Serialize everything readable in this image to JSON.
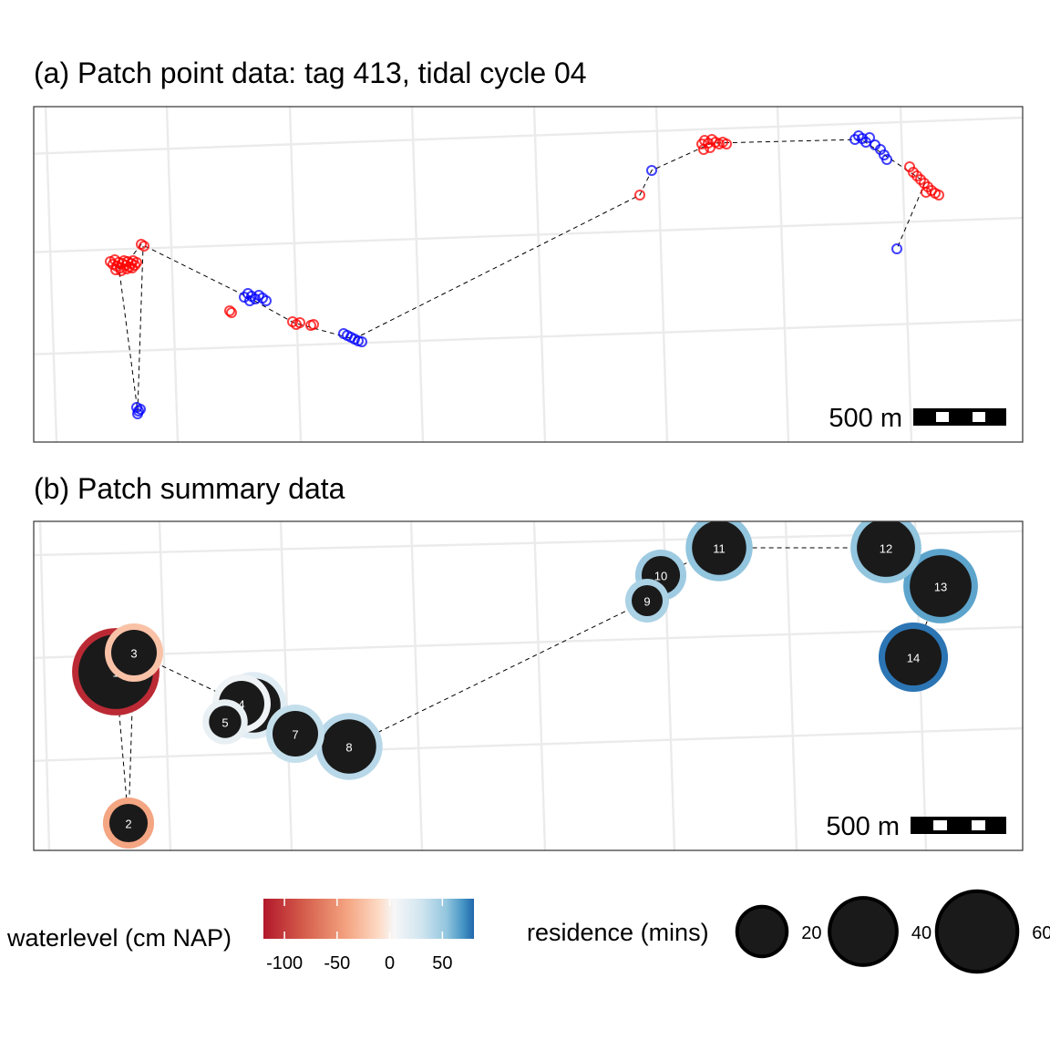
{
  "panels": {
    "a": {
      "title": "(a) Patch point data: tag 413, tidal cycle 04"
    },
    "b": {
      "title": "(b) Patch summary data"
    }
  },
  "scalebar": {
    "label": "500 m"
  },
  "colors": {
    "above_zero": "#0000ff",
    "below_zero": "#ff0000",
    "grid": "#ebebeb",
    "panel_border": "#333333",
    "patch_fill": "#1a1a1a"
  },
  "legend": {
    "waterlevel": {
      "title": "waterlevel (cm NAP)",
      "ticks": [
        -100,
        -50,
        0,
        50
      ],
      "range": [
        -120,
        80
      ],
      "palette": "RdBu diverging"
    },
    "residence": {
      "title": "residence (mins)",
      "ticks": [
        20,
        40,
        60
      ]
    }
  },
  "chart_data": [
    {
      "type": "scatter",
      "title": "(a) Patch point data: tag 413, tidal cycle 04",
      "xlabel": "",
      "ylabel": "",
      "grid": true,
      "color_encoding": "red = waterlevel below 0 cm NAP, blue = above",
      "series": [
        {
          "class": "red",
          "points": [
            [
              121,
              287
            ],
            [
              124,
              290
            ],
            [
              126,
              285
            ],
            [
              128,
              292
            ],
            [
              130,
              288
            ],
            [
              132,
              294
            ],
            [
              134,
              289
            ],
            [
              136,
              286
            ],
            [
              138,
              291
            ],
            [
              140,
              287
            ],
            [
              142,
              293
            ],
            [
              144,
              289
            ],
            [
              146,
              286
            ],
            [
              148,
              291
            ],
            [
              150,
              288
            ],
            [
              127,
              296
            ],
            [
              133,
              297
            ],
            [
              139,
              295
            ],
            [
              145,
              294
            ],
            [
              155,
              268
            ],
            [
              158,
              270
            ],
            [
              252,
              341
            ],
            [
              254,
              343
            ],
            [
              321,
              353
            ],
            [
              325,
              356
            ],
            [
              329,
              354
            ],
            [
              341,
              357
            ],
            [
              344,
              356
            ],
            [
              702,
              214
            ],
            [
              770,
              158
            ],
            [
              773,
              154
            ],
            [
              777,
              157
            ],
            [
              781,
              153
            ],
            [
              785,
              156
            ],
            [
              789,
              158
            ],
            [
              793,
              156
            ],
            [
              797,
              158
            ],
            [
              772,
              164
            ],
            [
              779,
              162
            ],
            [
              998,
              183
            ],
            [
              1002,
              189
            ],
            [
              1006,
              193
            ],
            [
              1010,
              197
            ],
            [
              1014,
              201
            ],
            [
              1018,
              205
            ],
            [
              1022,
              209
            ],
            [
              1026,
              212
            ],
            [
              1030,
              214
            ],
            [
              1016,
              211
            ]
          ]
        },
        {
          "class": "blue",
          "points": [
            [
              150,
              447
            ],
            [
              152,
              451
            ],
            [
              151,
              454
            ],
            [
              154,
              449
            ],
            [
              268,
              326
            ],
            [
              272,
              322
            ],
            [
              276,
              325
            ],
            [
              280,
              328
            ],
            [
              284,
              324
            ],
            [
              288,
              327
            ],
            [
              292,
              330
            ],
            [
              274,
              330
            ],
            [
              377,
              366
            ],
            [
              381,
              368
            ],
            [
              385,
              370
            ],
            [
              389,
              372
            ],
            [
              393,
              374
            ],
            [
              397,
              375
            ],
            [
              715,
              187
            ],
            [
              938,
              153
            ],
            [
              942,
              149
            ],
            [
              946,
              152
            ],
            [
              950,
              156
            ],
            [
              954,
              151
            ],
            [
              960,
              159
            ],
            [
              966,
              164
            ],
            [
              970,
              170
            ],
            [
              973,
              175
            ],
            [
              984,
              273
            ]
          ]
        }
      ],
      "track": [
        [
          141,
          286
        ],
        [
          155,
          268
        ],
        [
          272,
          326
        ],
        [
          322,
          354
        ],
        [
          388,
          372
        ],
        [
          702,
          214
        ],
        [
          715,
          187
        ],
        [
          781,
          157
        ],
        [
          945,
          153
        ],
        [
          1015,
          200
        ],
        [
          984,
          273
        ]
      ],
      "track_to_south": [
        [
          130,
          290
        ],
        [
          151,
          451
        ],
        [
          157,
          270
        ]
      ]
    },
    {
      "type": "scatter",
      "title": "(b) Patch summary data",
      "xlabel": "",
      "ylabel": "",
      "grid": true,
      "size_var": "residence (mins)",
      "color_var": "waterlevel (cm NAP)",
      "patches": [
        {
          "id": "1",
          "waterlevel": -110,
          "residence": 65
        },
        {
          "id": "2",
          "waterlevel": -40,
          "residence": 18
        },
        {
          "id": "3",
          "waterlevel": -25,
          "residence": 25
        },
        {
          "id": "4",
          "waterlevel": 10,
          "residence": 25
        },
        {
          "id": "5",
          "waterlevel": 15,
          "residence": 13
        },
        {
          "id": "6",
          "waterlevel": 20,
          "residence": 35
        },
        {
          "id": "7",
          "waterlevel": 35,
          "residence": 25
        },
        {
          "id": "8",
          "waterlevel": 40,
          "residence": 35
        },
        {
          "id": "9",
          "waterlevel": 45,
          "residence": 12
        },
        {
          "id": "10",
          "waterlevel": 50,
          "residence": 18
        },
        {
          "id": "11",
          "waterlevel": 55,
          "residence": 35
        },
        {
          "id": "12",
          "waterlevel": 55,
          "residence": 40
        },
        {
          "id": "13",
          "waterlevel": 65,
          "residence": 45
        },
        {
          "id": "14",
          "waterlevel": 80,
          "residence": 38
        }
      ]
    }
  ]
}
